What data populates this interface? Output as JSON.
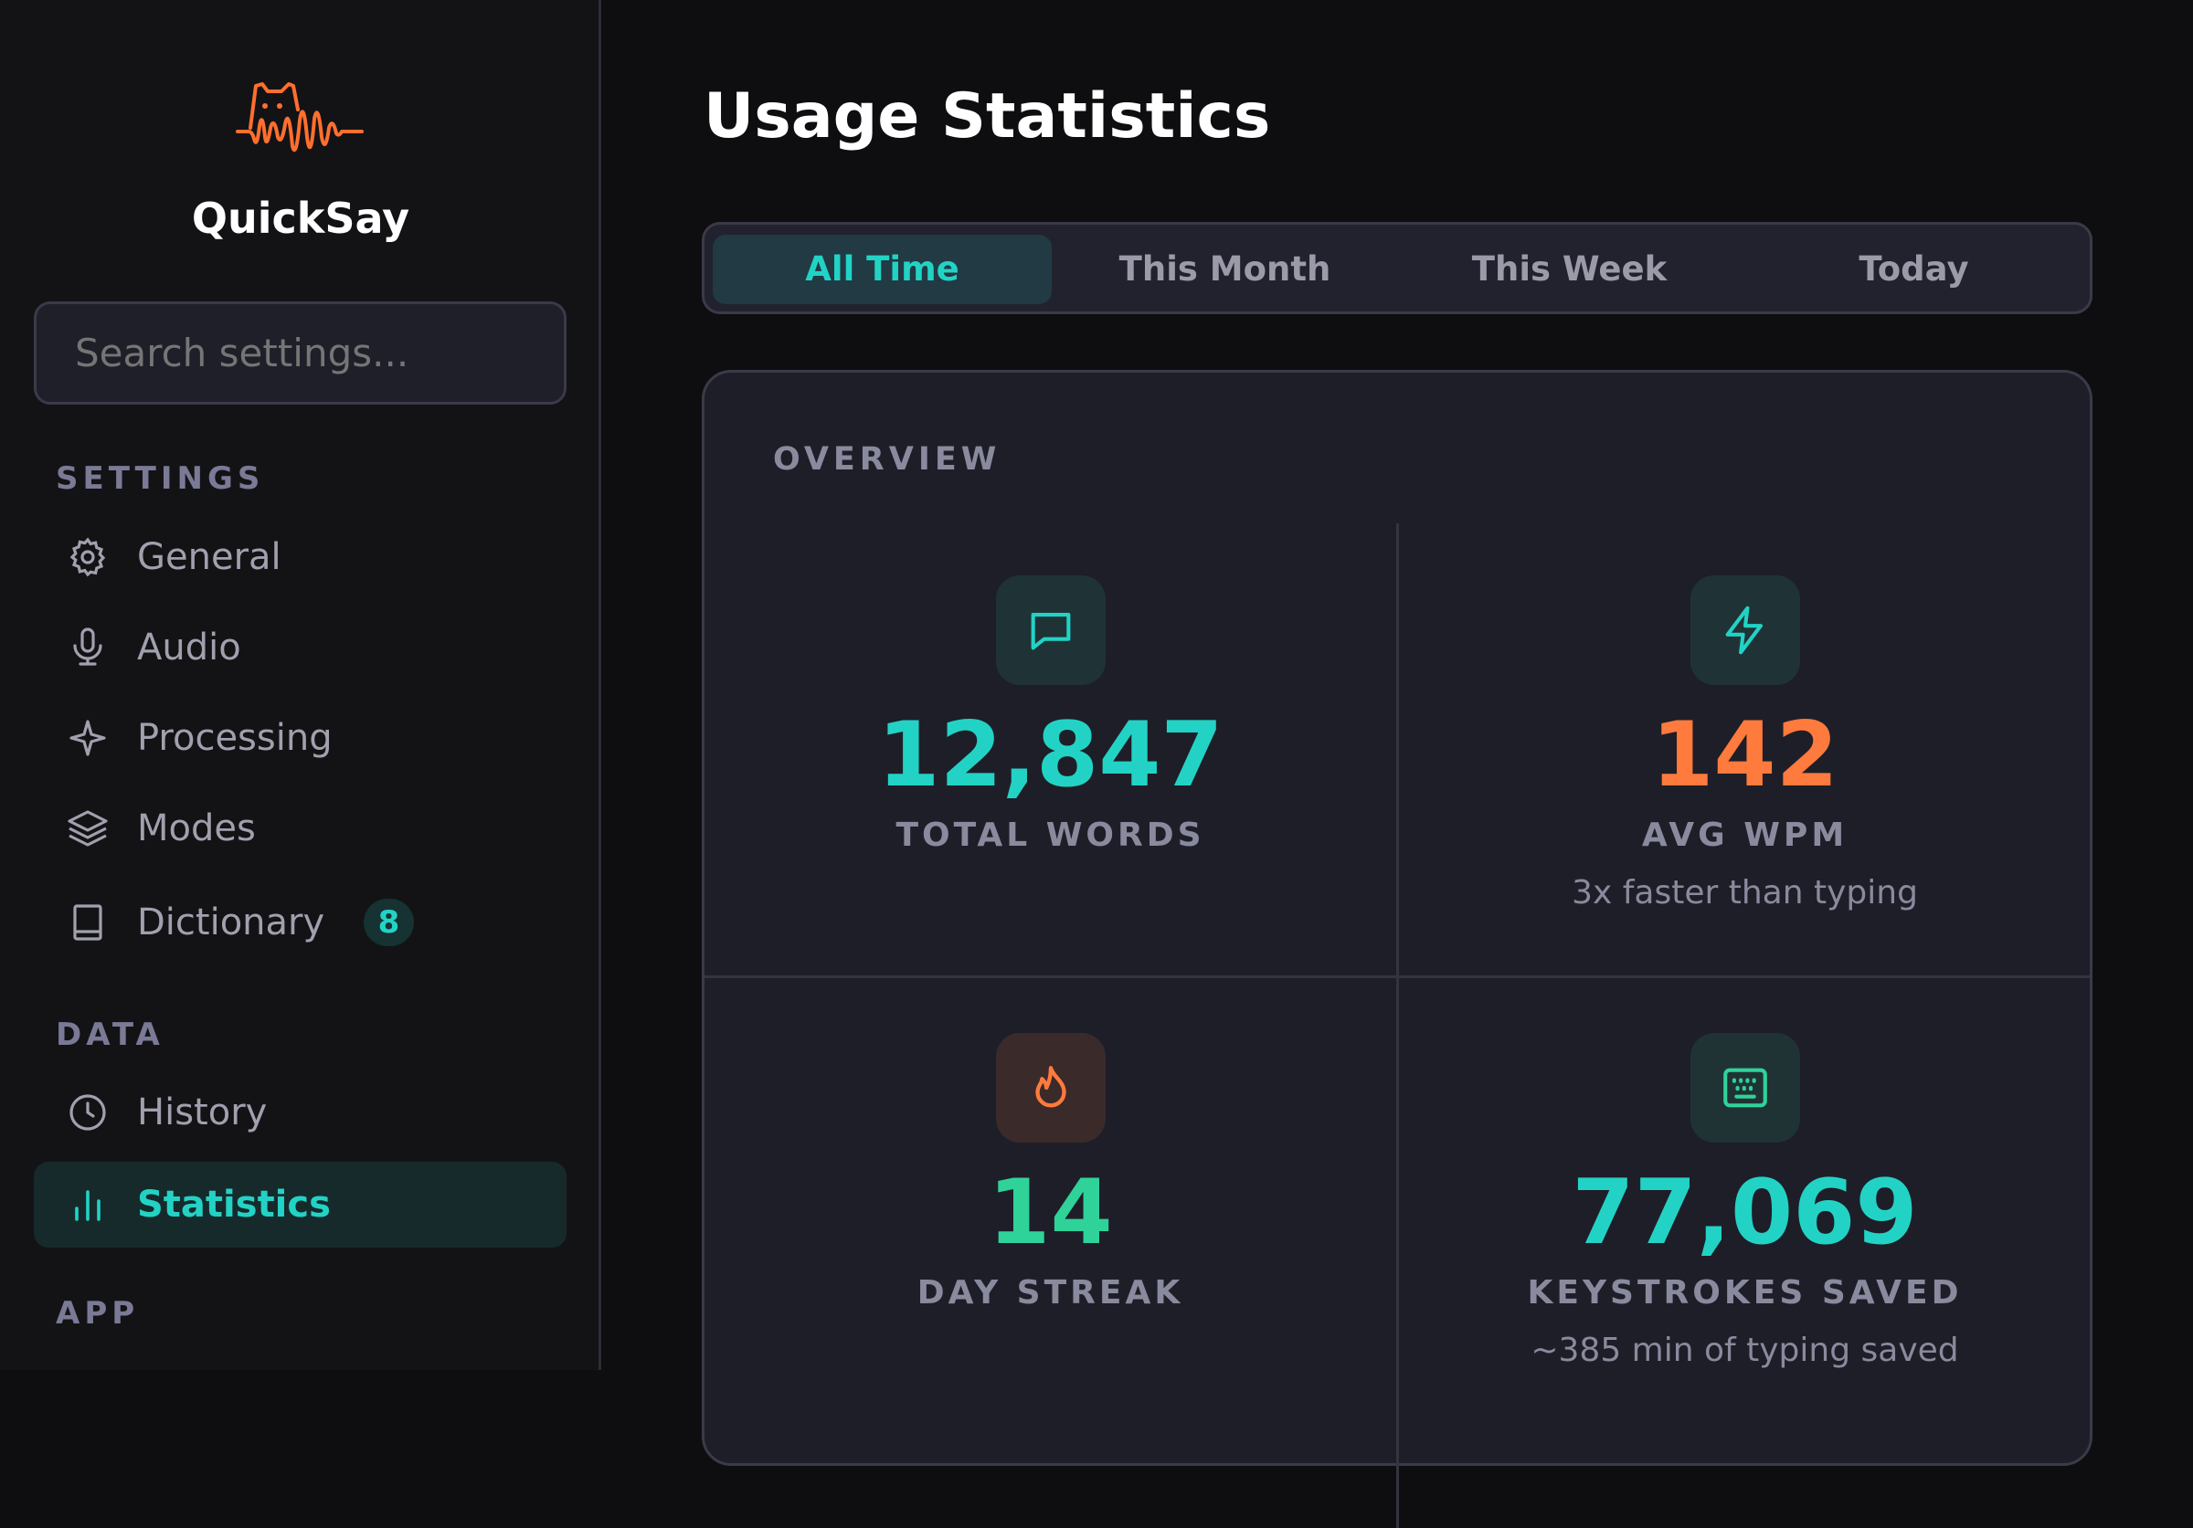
{
  "app": {
    "name": "QuickSay",
    "logo": "cat-waveform-logo"
  },
  "search": {
    "placeholder": "Search settings..."
  },
  "sidebar": {
    "sections": [
      {
        "label": "SETTINGS"
      },
      {
        "label": "DATA"
      },
      {
        "label": "APP"
      }
    ],
    "items": [
      {
        "label": "General",
        "icon": "gear-icon"
      },
      {
        "label": "Audio",
        "icon": "microphone-icon"
      },
      {
        "label": "Processing",
        "icon": "sparkle-icon"
      },
      {
        "label": "Modes",
        "icon": "layers-icon"
      },
      {
        "label": "Dictionary",
        "icon": "book-icon",
        "badge": "8"
      },
      {
        "label": "History",
        "icon": "clock-icon"
      },
      {
        "label": "Statistics",
        "icon": "bar-chart-icon",
        "active": true
      }
    ]
  },
  "main": {
    "title": "Usage Statistics",
    "tabs": [
      {
        "label": "All Time",
        "active": true
      },
      {
        "label": "This Month"
      },
      {
        "label": "This Week"
      },
      {
        "label": "Today"
      }
    ],
    "overview": {
      "label": "OVERVIEW",
      "stats": [
        {
          "value": "12,847",
          "label": "TOTAL WORDS",
          "sub": "",
          "icon": "message-icon",
          "color": "#22d3c5"
        },
        {
          "value": "142",
          "label": "AVG WPM",
          "sub": "3x faster than typing",
          "icon": "lightning-icon",
          "color": "#ff7a3d"
        },
        {
          "value": "14",
          "label": "DAY STREAK",
          "sub": "",
          "icon": "flame-icon",
          "color": "#2fd39a"
        },
        {
          "value": "77,069",
          "label": "KEYSTROKES SAVED",
          "sub": "~385 min of typing saved",
          "icon": "keyboard-icon",
          "color": "#22d3c5"
        }
      ]
    }
  },
  "colors": {
    "accent": "#22d3c5",
    "orange": "#ff7a3d",
    "green": "#2fd39a"
  }
}
